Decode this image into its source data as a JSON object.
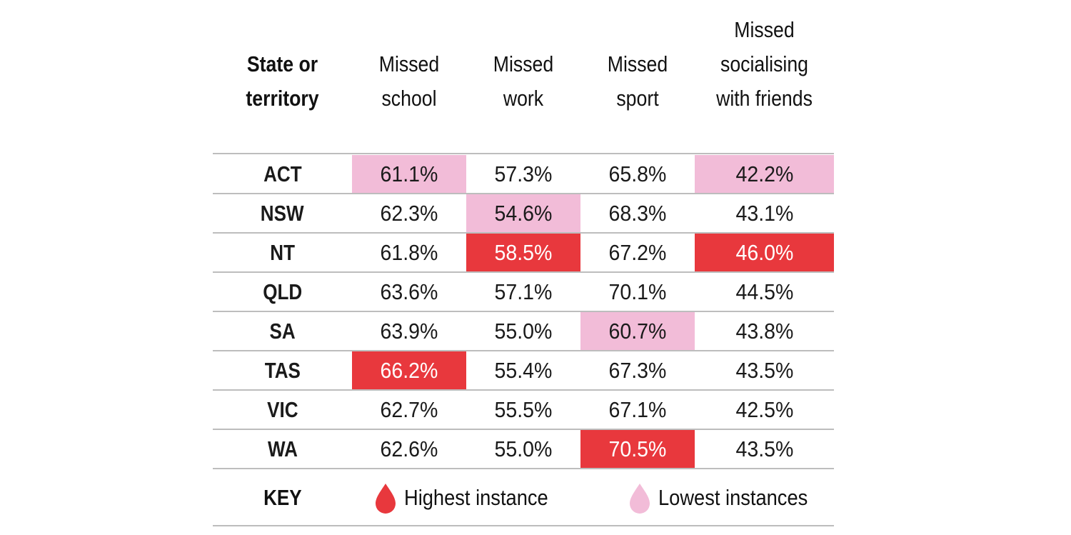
{
  "colors": {
    "highest": "#e8383d",
    "lowest": "#f2bcd8",
    "text": "#1a1a1a",
    "highlight_text": "#ffffff"
  },
  "header": {
    "state": [
      "State or",
      "territory"
    ],
    "columns": [
      [
        "Missed",
        "school"
      ],
      [
        "Missed",
        "work"
      ],
      [
        "Missed",
        "sport"
      ],
      [
        "Missed",
        "socialising",
        "with friends"
      ]
    ]
  },
  "chart_data": {
    "type": "table",
    "columns": [
      "Missed school",
      "Missed work",
      "Missed sport",
      "Missed socialising with friends"
    ],
    "rows": [
      {
        "state": "ACT",
        "values": [
          "61.1%",
          "57.3%",
          "65.8%",
          "42.2%"
        ],
        "marks": [
          "low",
          "",
          "",
          "low"
        ]
      },
      {
        "state": "NSW",
        "values": [
          "62.3%",
          "54.6%",
          "68.3%",
          "43.1%"
        ],
        "marks": [
          "",
          "low",
          "",
          ""
        ]
      },
      {
        "state": "NT",
        "values": [
          "61.8%",
          "58.5%",
          "67.2%",
          "46.0%"
        ],
        "marks": [
          "",
          "high",
          "",
          "high"
        ]
      },
      {
        "state": "QLD",
        "values": [
          "63.6%",
          "57.1%",
          "70.1%",
          "44.5%"
        ],
        "marks": [
          "",
          "",
          "",
          ""
        ]
      },
      {
        "state": "SA",
        "values": [
          "63.9%",
          "55.0%",
          "60.7%",
          "43.8%"
        ],
        "marks": [
          "",
          "",
          "low",
          ""
        ]
      },
      {
        "state": "TAS",
        "values": [
          "66.2%",
          "55.4%",
          "67.3%",
          "43.5%"
        ],
        "marks": [
          "high",
          "",
          "",
          ""
        ]
      },
      {
        "state": "VIC",
        "values": [
          "62.7%",
          "55.5%",
          "67.1%",
          "42.5%"
        ],
        "marks": [
          "",
          "",
          "",
          ""
        ]
      },
      {
        "state": "WA",
        "values": [
          "62.6%",
          "55.0%",
          "70.5%",
          "43.5%"
        ],
        "marks": [
          "",
          "",
          "high",
          ""
        ]
      }
    ]
  },
  "key": {
    "label": "KEY",
    "highest_label": "Highest instance",
    "lowest_label": "Lowest instances",
    "highest_icon": "drop-icon",
    "lowest_icon": "drop-icon"
  }
}
